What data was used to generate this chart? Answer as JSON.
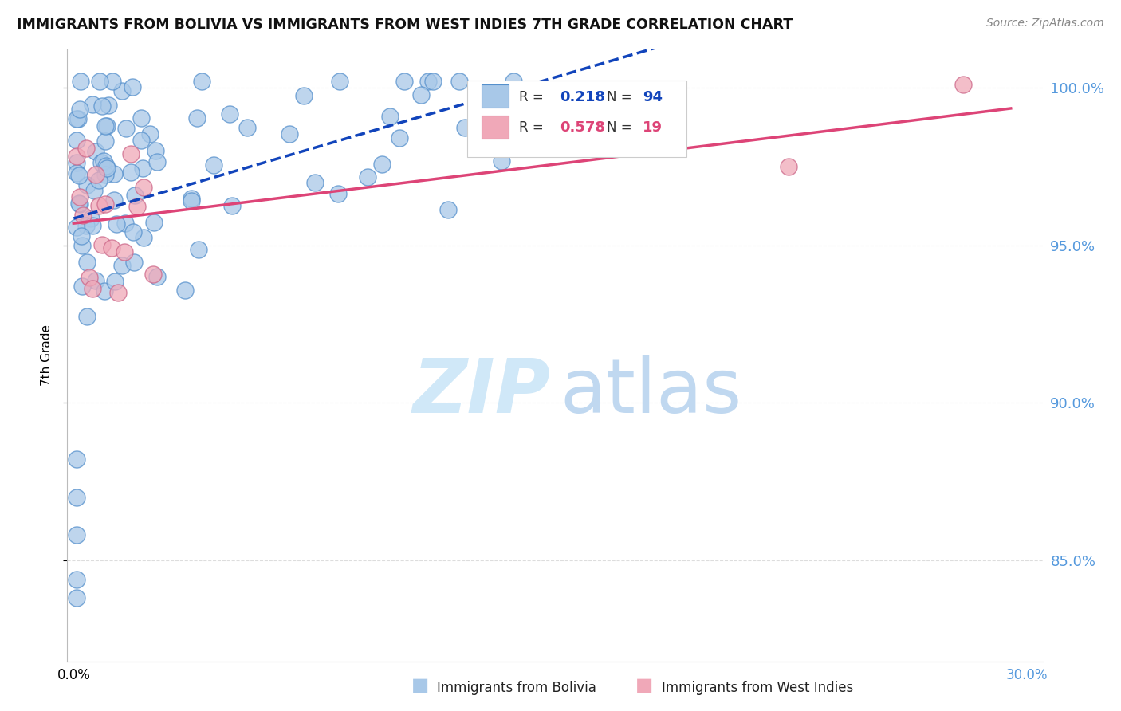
{
  "title": "IMMIGRANTS FROM BOLIVIA VS IMMIGRANTS FROM WEST INDIES 7TH GRADE CORRELATION CHART",
  "source": "Source: ZipAtlas.com",
  "ylabel": "7th Grade",
  "ylim": [
    0.818,
    1.012
  ],
  "xlim": [
    -0.002,
    0.305
  ],
  "yticks": [
    0.85,
    0.9,
    0.95,
    1.0
  ],
  "ytick_labels": [
    "85.0%",
    "90.0%",
    "95.0%",
    "100.0%"
  ],
  "r_bolivia": 0.218,
  "n_bolivia": 94,
  "r_westindies": 0.578,
  "n_westindies": 19,
  "bolivia_color": "#a8c8e8",
  "westindies_color": "#f0a8b8",
  "bolivia_edge_color": "#5590cc",
  "westindies_edge_color": "#cc6688",
  "bolivia_line_color": "#1144bb",
  "westindies_line_color": "#dd4477",
  "watermark_zip_color": "#d0e8f8",
  "watermark_atlas_color": "#c0d8f0",
  "grid_color": "#dddddd",
  "title_color": "#111111",
  "source_color": "#888888",
  "right_axis_color": "#5599dd",
  "bolivia_line_style": "--",
  "westindies_line_style": "-"
}
